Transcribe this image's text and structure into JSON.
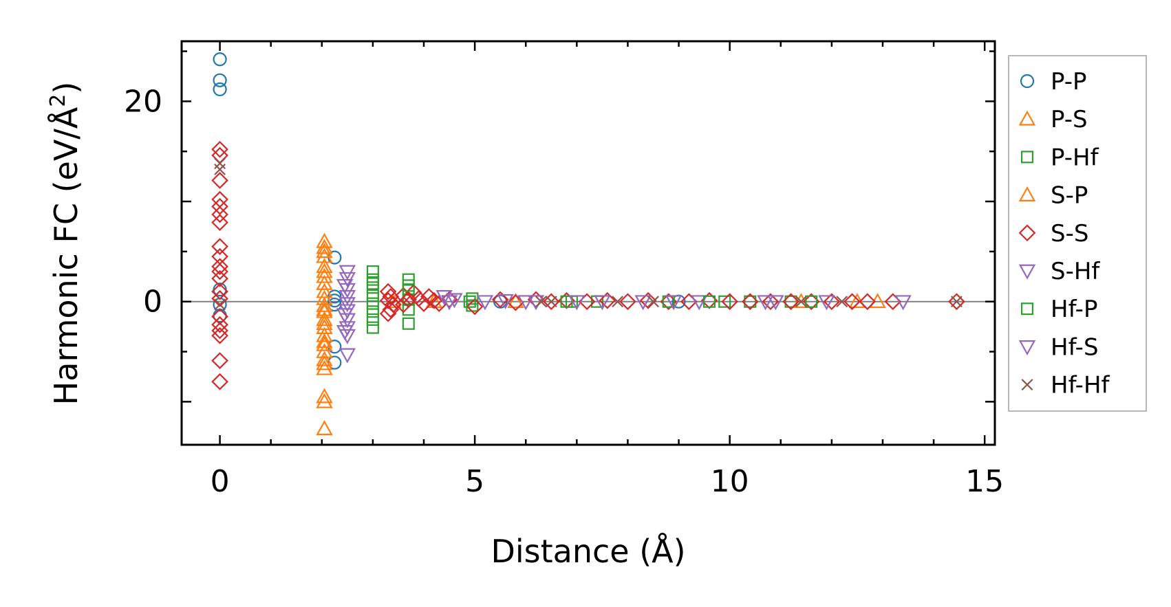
{
  "chart_data": {
    "type": "scatter",
    "title": "",
    "xlabel": "Distance (Å)",
    "ylabel_prefix": "Harmonic FC (eV/Å",
    "ylabel_sup": "2",
    "ylabel_suffix": ")",
    "xlim": [
      -0.75,
      15.2
    ],
    "ylim": [
      -14.3,
      26
    ],
    "xticks": [
      0,
      5,
      10,
      15
    ],
    "xtick_labels": [
      "0",
      "5",
      "10",
      "15"
    ],
    "yticks": [
      0,
      20
    ],
    "ytick_labels": [
      "0",
      "20"
    ],
    "reference_line_y": 0,
    "legend_position": "outside-right",
    "series": [
      {
        "name": "P-P",
        "marker": "circle",
        "color": "#1f77b4",
        "points": [
          [
            0,
            24.2
          ],
          [
            0,
            22.1
          ],
          [
            0,
            21.2
          ],
          [
            0,
            1.2
          ],
          [
            0,
            -1.4
          ],
          [
            0,
            -0.3
          ],
          [
            2.25,
            4.4
          ],
          [
            2.25,
            0.5
          ],
          [
            2.25,
            0.1
          ],
          [
            2.25,
            -0.3
          ],
          [
            2.25,
            -4.5
          ],
          [
            2.25,
            -6.1
          ],
          [
            5.5,
            0
          ],
          [
            9.0,
            0
          ]
        ]
      },
      {
        "name": "P-S",
        "marker": "triangle-up",
        "color": "#ff7f0e",
        "points": [
          [
            2.05,
            6.0
          ],
          [
            2.05,
            5.4
          ],
          [
            2.05,
            4.5
          ],
          [
            2.05,
            3.5
          ],
          [
            2.05,
            2.5
          ],
          [
            2.05,
            1.8
          ],
          [
            2.05,
            1.0
          ],
          [
            2.05,
            0.3
          ],
          [
            2.05,
            -0.4
          ],
          [
            2.05,
            -1.0
          ],
          [
            2.05,
            -1.8
          ],
          [
            2.05,
            -2.6
          ],
          [
            2.05,
            -3.4
          ],
          [
            2.05,
            -4.3
          ],
          [
            2.05,
            -5.0
          ],
          [
            2.05,
            -5.8
          ],
          [
            2.05,
            -6.7
          ],
          [
            2.05,
            -9.5
          ],
          [
            2.05,
            -10.0
          ],
          [
            2.05,
            -12.7
          ],
          [
            3.4,
            0
          ],
          [
            4.2,
            0
          ],
          [
            5.8,
            0
          ],
          [
            12.9,
            0
          ]
        ]
      },
      {
        "name": "P-Hf",
        "marker": "square",
        "color": "#2ca02c",
        "points": [
          [
            3.0,
            3.0
          ],
          [
            3.0,
            2.2
          ],
          [
            3.0,
            1.4
          ],
          [
            3.0,
            0.6
          ],
          [
            3.0,
            -0.2
          ],
          [
            3.0,
            -1.0
          ],
          [
            3.0,
            -1.8
          ],
          [
            3.0,
            -2.6
          ],
          [
            3.7,
            2.2
          ],
          [
            3.7,
            1.2
          ],
          [
            3.7,
            0.2
          ],
          [
            3.7,
            -0.8
          ],
          [
            3.7,
            -2.2
          ],
          [
            4.95,
            0.3
          ],
          [
            4.95,
            -0.4
          ],
          [
            6.9,
            0
          ],
          [
            7.4,
            0
          ],
          [
            9.9,
            0
          ],
          [
            10.4,
            0
          ],
          [
            11.2,
            0
          ]
        ]
      },
      {
        "name": "S-P",
        "marker": "triangle-up",
        "color": "#ff7f0e",
        "points": [
          [
            2.05,
            5.0
          ],
          [
            2.05,
            3.0
          ],
          [
            2.05,
            -0.8
          ],
          [
            2.05,
            -2.2
          ],
          [
            2.05,
            -4.0
          ],
          [
            2.05,
            -6.2
          ],
          [
            11.4,
            0
          ],
          [
            12.5,
            0
          ]
        ]
      },
      {
        "name": "S-S",
        "marker": "diamond",
        "color": "#d62728",
        "points": [
          [
            0,
            15.2
          ],
          [
            0,
            14.6
          ],
          [
            0,
            12.1
          ],
          [
            0,
            10.2
          ],
          [
            0,
            9.5
          ],
          [
            0,
            8.7
          ],
          [
            0,
            7.9
          ],
          [
            0,
            5.5
          ],
          [
            0,
            4.5
          ],
          [
            0,
            3.5
          ],
          [
            0,
            3.0
          ],
          [
            0,
            2.3
          ],
          [
            0,
            1.0
          ],
          [
            0,
            0.3
          ],
          [
            0,
            -1.5
          ],
          [
            0,
            -2.3
          ],
          [
            0,
            -2.9
          ],
          [
            0,
            -3.4
          ],
          [
            0,
            -5.9
          ],
          [
            0,
            -8.0
          ],
          [
            3.3,
            1.0
          ],
          [
            3.35,
            0.5
          ],
          [
            3.3,
            0.1
          ],
          [
            3.4,
            -0.3
          ],
          [
            3.35,
            -0.8
          ],
          [
            3.3,
            -1.2
          ],
          [
            3.6,
            0.6
          ],
          [
            3.7,
            0.2
          ],
          [
            3.6,
            -0.3
          ],
          [
            3.8,
            0.9
          ],
          [
            3.9,
            0.3
          ],
          [
            4.0,
            -0.2
          ],
          [
            4.1,
            0.5
          ],
          [
            4.2,
            0.1
          ],
          [
            4.3,
            -0.2
          ],
          [
            4.5,
            0.2
          ],
          [
            5.0,
            -0.5
          ],
          [
            5.5,
            0.2
          ],
          [
            5.8,
            -0.1
          ],
          [
            6.2,
            0.2
          ],
          [
            6.5,
            0
          ],
          [
            6.8,
            0.1
          ],
          [
            7.2,
            0
          ],
          [
            7.6,
            0.1
          ],
          [
            8.0,
            0
          ],
          [
            8.4,
            0.1
          ],
          [
            8.8,
            0
          ],
          [
            9.2,
            0
          ],
          [
            9.6,
            0.1
          ],
          [
            10.0,
            0
          ],
          [
            10.4,
            0
          ],
          [
            10.8,
            0
          ],
          [
            11.2,
            0
          ],
          [
            11.6,
            0
          ],
          [
            12.0,
            0
          ],
          [
            12.4,
            0
          ],
          [
            12.7,
            0
          ],
          [
            13.2,
            0
          ],
          [
            14.45,
            0
          ]
        ]
      },
      {
        "name": "S-Hf",
        "marker": "triangle-down",
        "color": "#9467bd",
        "points": [
          [
            2.5,
            3.0
          ],
          [
            2.5,
            2.3
          ],
          [
            2.5,
            1.2
          ],
          [
            2.5,
            0.5
          ],
          [
            2.5,
            -0.2
          ],
          [
            2.5,
            -0.9
          ],
          [
            2.5,
            -1.8
          ],
          [
            2.5,
            -2.6
          ],
          [
            2.5,
            -3.4
          ],
          [
            2.5,
            -5.3
          ],
          [
            4.4,
            0.5
          ],
          [
            4.6,
            0.2
          ],
          [
            5.2,
            0
          ],
          [
            5.6,
            0.1
          ],
          [
            6.2,
            0
          ],
          [
            7.5,
            0
          ],
          [
            8.3,
            0
          ],
          [
            9.4,
            0
          ],
          [
            10.7,
            0
          ],
          [
            13.4,
            0
          ]
        ]
      },
      {
        "name": "Hf-P",
        "marker": "square",
        "color": "#2ca02c",
        "points": [
          [
            3.0,
            1.8
          ],
          [
            3.7,
            1.6
          ],
          [
            4.9,
            0
          ],
          [
            6.8,
            0
          ],
          [
            8.8,
            0
          ],
          [
            9.6,
            0
          ],
          [
            11.6,
            0
          ]
        ]
      },
      {
        "name": "Hf-S",
        "marker": "triangle-down",
        "color": "#9467bd",
        "points": [
          [
            2.45,
            1.6
          ],
          [
            2.45,
            -1.3
          ],
          [
            2.45,
            -3.0
          ],
          [
            4.5,
            0
          ],
          [
            6.0,
            0
          ],
          [
            7.0,
            0
          ],
          [
            8.9,
            0
          ],
          [
            10.9,
            0
          ],
          [
            11.9,
            0
          ]
        ]
      },
      {
        "name": "Hf-Hf",
        "marker": "x",
        "color": "#8c564b",
        "points": [
          [
            0,
            13.8
          ],
          [
            0,
            13.2
          ],
          [
            0,
            -0.3
          ],
          [
            6.3,
            0
          ],
          [
            6.5,
            0
          ],
          [
            7.8,
            0
          ],
          [
            8.5,
            0
          ],
          [
            11.4,
            0
          ],
          [
            12.2,
            0
          ],
          [
            14.45,
            0
          ]
        ]
      }
    ]
  }
}
